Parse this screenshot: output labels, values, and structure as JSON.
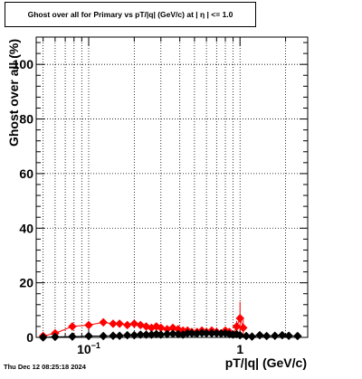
{
  "chart_data": {
    "type": "scatter",
    "title": "Ghost over all for Primary vs pT/|q| (GeV/c) at |  η  | <= 1.0",
    "xlabel": "pT/|q| (GeV/c)",
    "ylabel": "Ghost over all (%)",
    "xscale": "log",
    "xlim": [
      0.045,
      2.8
    ],
    "ylim": [
      0,
      110
    ],
    "grid": true,
    "xtick_labels": [
      {
        "value": 0.1,
        "base": "10",
        "exp": "−1"
      },
      {
        "value": 1,
        "base": "1",
        "exp": ""
      }
    ],
    "yticks": [
      0,
      20,
      40,
      60,
      80,
      100
    ],
    "series": [
      {
        "color": "#ff0000",
        "x": [
          0.05,
          0.06,
          0.078,
          0.1,
          0.125,
          0.145,
          0.16,
          0.18,
          0.2,
          0.22,
          0.24,
          0.26,
          0.28,
          0.3,
          0.33,
          0.36,
          0.39,
          0.42,
          0.45,
          0.48,
          0.52,
          0.56,
          0.6,
          0.65,
          0.7,
          0.75,
          0.8,
          0.85,
          0.9,
          0.95,
          1.0,
          1.05
        ],
        "y": [
          0.5,
          1.5,
          4.0,
          4.5,
          5.5,
          5.0,
          5.0,
          4.5,
          5.0,
          4.5,
          4.0,
          3.5,
          4.0,
          3.5,
          3.0,
          3.5,
          3.0,
          2.5,
          2.5,
          2.0,
          2.0,
          2.5,
          2.0,
          2.5,
          2.0,
          1.5,
          2.5,
          2.0,
          1.0,
          4.0,
          7.0,
          3.5
        ],
        "err": [
          0.5,
          1.0,
          1.2,
          1.0,
          1.0,
          0.9,
          0.9,
          0.8,
          0.9,
          0.8,
          0.8,
          0.7,
          0.8,
          0.7,
          0.7,
          0.7,
          0.7,
          0.6,
          0.6,
          0.6,
          0.6,
          0.7,
          0.6,
          0.8,
          0.7,
          0.6,
          0.9,
          0.8,
          0.6,
          2.0,
          6.0,
          3.0
        ]
      },
      {
        "color": "#000000",
        "x": [
          0.05,
          0.06,
          0.078,
          0.1,
          0.125,
          0.145,
          0.16,
          0.18,
          0.2,
          0.22,
          0.24,
          0.26,
          0.28,
          0.3,
          0.33,
          0.36,
          0.39,
          0.42,
          0.45,
          0.48,
          0.52,
          0.56,
          0.6,
          0.65,
          0.7,
          0.75,
          0.8,
          0.85,
          0.9,
          0.95,
          1.0,
          1.1,
          1.2,
          1.35,
          1.5,
          1.7,
          1.9,
          2.1,
          2.4
        ],
        "y": [
          0.0,
          0.2,
          0.3,
          0.5,
          0.5,
          0.6,
          0.6,
          0.8,
          0.8,
          1.0,
          1.0,
          1.0,
          1.2,
          1.0,
          1.2,
          1.3,
          1.2,
          1.0,
          1.5,
          1.5,
          1.4,
          1.6,
          1.5,
          1.5,
          1.5,
          1.4,
          1.5,
          1.2,
          1.0,
          1.2,
          0.8,
          0.5,
          0.3,
          0.8,
          0.5,
          0.6,
          0.8,
          0.6,
          0.5
        ],
        "err": [
          0.0,
          0.2,
          0.2,
          0.2,
          0.2,
          0.2,
          0.2,
          0.3,
          0.3,
          0.3,
          0.3,
          0.3,
          0.3,
          0.3,
          0.3,
          0.3,
          0.3,
          0.3,
          0.4,
          0.4,
          0.4,
          0.4,
          0.4,
          0.4,
          0.4,
          0.4,
          0.4,
          0.4,
          0.3,
          0.4,
          0.3,
          0.3,
          0.3,
          0.4,
          0.3,
          0.3,
          0.4,
          0.3,
          0.3
        ]
      }
    ]
  },
  "footer": {
    "timestamp": "Thu Dec 12 08:25:18 2024"
  }
}
